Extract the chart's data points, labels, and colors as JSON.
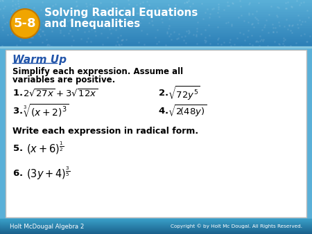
{
  "header_bg_left": "#2a7db5",
  "header_bg_right": "#5ab0d8",
  "header_number_bg": "#f0a500",
  "header_number": "5-8",
  "header_title_line1": "Solving Radical Equations",
  "header_title_line2": "and Inequalities",
  "warm_up_color": "#2255aa",
  "warm_up_text": "Warm Up",
  "subtitle_line1": "Simplify each expression. Assume all",
  "subtitle_line2": "variables are positive.",
  "footer_left": "Holt McDougal Algebra 2",
  "footer_right": "Copyright © by Holt Mc Dougal. All Rights Reserved.",
  "footer_bg_left": "#1a5f8a",
  "footer_bg_right": "#3a9fc8",
  "body_bg": "#ffffff",
  "border_color": "#999999"
}
